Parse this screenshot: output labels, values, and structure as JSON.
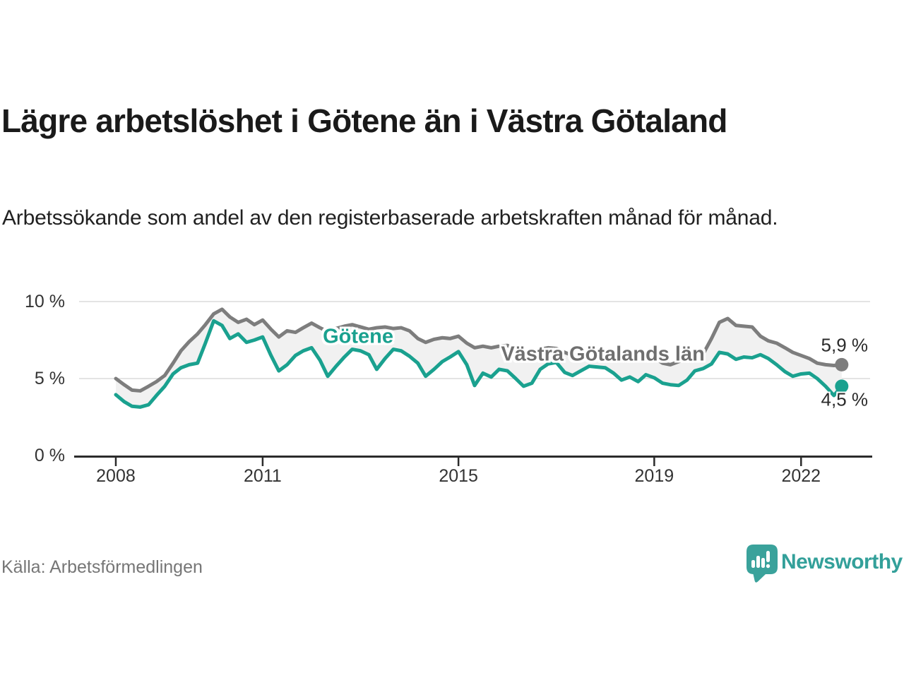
{
  "footer": {
    "source": "Källa: Arbetsförmedlingen",
    "brand": "Newsworthy",
    "brand_icon": "bar-chart-speech-bubble-icon",
    "brand_color": "#33a09a"
  },
  "chart_data": {
    "type": "line",
    "title": "Lägre arbetslöshet i Götene än i Västra Götaland",
    "subtitle": "Arbetssökande som andel av den registerbaserade arbetskraften månad för månad.",
    "xlabel": "",
    "ylabel": "",
    "y_unit": "%",
    "xlim": [
      2007.25,
      2023.41
    ],
    "ylim": [
      0,
      10
    ],
    "grid": "horizontal-only",
    "legend": "inline-labels-on-lines",
    "y_ticks": [
      {
        "v": 0,
        "label": "0 %"
      },
      {
        "v": 5,
        "label": "5 %"
      },
      {
        "v": 10,
        "label": "10 %"
      }
    ],
    "x_ticks": [
      {
        "v": 2008,
        "label": "2008"
      },
      {
        "v": 2011,
        "label": "2011"
      },
      {
        "v": 2015,
        "label": "2015"
      },
      {
        "v": 2019,
        "label": "2019"
      },
      {
        "v": 2022,
        "label": "2022"
      }
    ],
    "x": [
      2008.0,
      2008.17,
      2008.33,
      2008.5,
      2008.67,
      2008.83,
      2009.0,
      2009.17,
      2009.33,
      2009.5,
      2009.67,
      2009.83,
      2010.0,
      2010.17,
      2010.33,
      2010.5,
      2010.67,
      2010.83,
      2011.0,
      2011.17,
      2011.33,
      2011.5,
      2011.67,
      2011.83,
      2012.0,
      2012.17,
      2012.33,
      2012.5,
      2012.67,
      2012.83,
      2013.0,
      2013.17,
      2013.33,
      2013.5,
      2013.67,
      2013.83,
      2014.0,
      2014.17,
      2014.33,
      2014.5,
      2014.67,
      2014.83,
      2015.0,
      2015.17,
      2015.33,
      2015.5,
      2015.67,
      2015.83,
      2016.0,
      2016.17,
      2016.33,
      2016.5,
      2016.67,
      2016.83,
      2017.0,
      2017.17,
      2017.33,
      2017.5,
      2017.67,
      2017.83,
      2018.0,
      2018.17,
      2018.33,
      2018.5,
      2018.67,
      2018.83,
      2019.0,
      2019.17,
      2019.33,
      2019.5,
      2019.67,
      2019.83,
      2020.0,
      2020.17,
      2020.33,
      2020.5,
      2020.67,
      2020.83,
      2021.0,
      2021.17,
      2021.33,
      2021.5,
      2021.67,
      2021.83,
      2022.0,
      2022.17,
      2022.33,
      2022.5,
      2022.67,
      2022.83
    ],
    "series": [
      {
        "name": "Västra Götalands län",
        "color": "#7d7d7d",
        "end_label": "5,9 %",
        "end_value": 5.9,
        "values": [
          5.0,
          4.6,
          4.25,
          4.2,
          4.5,
          4.8,
          5.2,
          6.0,
          6.8,
          7.4,
          7.9,
          8.5,
          9.2,
          9.5,
          9.0,
          8.65,
          8.85,
          8.5,
          8.8,
          8.2,
          7.7,
          8.1,
          8.0,
          8.3,
          8.6,
          8.3,
          8.05,
          8.25,
          8.4,
          8.5,
          8.35,
          8.2,
          8.3,
          8.35,
          8.25,
          8.3,
          8.1,
          7.6,
          7.35,
          7.55,
          7.65,
          7.6,
          7.75,
          7.3,
          7.0,
          7.1,
          7.0,
          7.1,
          7.15,
          6.9,
          6.7,
          6.8,
          6.9,
          7.0,
          6.95,
          6.7,
          6.5,
          6.6,
          6.7,
          6.75,
          6.7,
          6.45,
          6.25,
          6.35,
          6.4,
          6.45,
          6.35,
          6.0,
          5.9,
          6.1,
          6.3,
          6.5,
          6.6,
          7.6,
          8.65,
          8.9,
          8.45,
          8.4,
          8.35,
          7.75,
          7.45,
          7.3,
          7.0,
          6.7,
          6.5,
          6.3,
          6.0,
          5.9,
          5.85,
          5.9
        ]
      },
      {
        "name": "Götene",
        "color": "#1aa18f",
        "end_label": "4,5 %",
        "end_value": 4.5,
        "values": [
          3.95,
          3.5,
          3.2,
          3.15,
          3.3,
          3.9,
          4.5,
          5.3,
          5.7,
          5.9,
          6.0,
          7.3,
          8.75,
          8.45,
          7.6,
          7.9,
          7.35,
          7.5,
          7.7,
          6.5,
          5.5,
          5.9,
          6.5,
          6.8,
          7.0,
          6.2,
          5.15,
          5.8,
          6.4,
          6.9,
          6.8,
          6.55,
          5.6,
          6.3,
          6.9,
          6.8,
          6.45,
          6.0,
          5.15,
          5.6,
          6.1,
          6.4,
          6.75,
          5.9,
          4.55,
          5.35,
          5.1,
          5.6,
          5.5,
          5.0,
          4.5,
          4.7,
          5.6,
          5.95,
          6.05,
          5.4,
          5.2,
          5.5,
          5.8,
          5.75,
          5.7,
          5.35,
          4.9,
          5.1,
          4.8,
          5.25,
          5.05,
          4.7,
          4.6,
          4.55,
          4.9,
          5.5,
          5.65,
          5.95,
          6.7,
          6.6,
          6.25,
          6.4,
          6.35,
          6.55,
          6.3,
          5.9,
          5.45,
          5.15,
          5.3,
          5.35,
          5.0,
          4.5,
          3.9,
          4.5
        ]
      }
    ],
    "annotations": [
      {
        "text": "Västra Götalands län",
        "x": 2017.95,
        "y": 6.55,
        "color": "#6f6f6f"
      },
      {
        "text": "Götene",
        "x": 2012.95,
        "y": 7.72,
        "color": "#1aa18f"
      }
    ],
    "theme": {
      "band_fill": "#f1f1f1",
      "gridline": "#dcdcdc",
      "axis": "#2b2b2b",
      "tick_text": "#333333",
      "label_halo": "#ffffff"
    }
  }
}
